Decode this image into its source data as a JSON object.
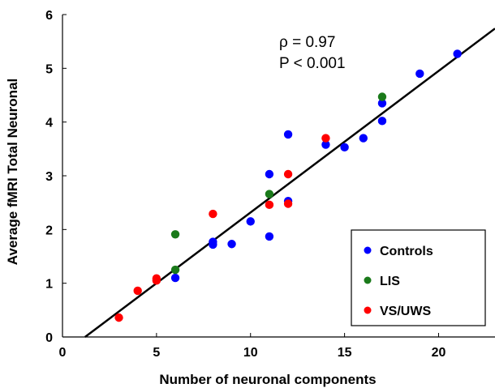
{
  "chart_data": {
    "type": "scatter",
    "xlabel": "Number of neuronal components",
    "ylabel": "Average fMRI Total Neuronal",
    "xlim": [
      0,
      23
    ],
    "ylim": [
      0,
      6
    ],
    "xticks": [
      0,
      5,
      10,
      15,
      20
    ],
    "yticks": [
      0,
      1,
      2,
      3,
      4,
      5,
      6
    ],
    "annotations": [
      "ρ = 0.97",
      "P < 0.001"
    ],
    "legend_position": "bottom-right",
    "grid": false,
    "fit_line": {
      "x": [
        1.2,
        23
      ],
      "y": [
        0,
        5.74
      ],
      "color": "#000000"
    },
    "series": [
      {
        "name": "Controls",
        "color": "#0000ff",
        "points": [
          [
            6,
            1.1
          ],
          [
            8,
            1.72
          ],
          [
            8,
            1.77
          ],
          [
            9,
            1.73
          ],
          [
            10,
            2.15
          ],
          [
            11,
            1.87
          ],
          [
            11,
            3.03
          ],
          [
            12,
            2.53
          ],
          [
            12,
            3.77
          ],
          [
            14,
            3.58
          ],
          [
            15,
            3.53
          ],
          [
            16,
            3.7
          ],
          [
            17,
            4.02
          ],
          [
            17,
            4.35
          ],
          [
            19,
            4.9
          ],
          [
            21,
            5.27
          ]
        ]
      },
      {
        "name": "LIS",
        "color": "#1a7a1a",
        "points": [
          [
            6,
            1.25
          ],
          [
            6,
            1.91
          ],
          [
            11,
            2.66
          ],
          [
            17,
            4.47
          ]
        ]
      },
      {
        "name": "VS/UWS",
        "color": "#ff0000",
        "points": [
          [
            3,
            0.36
          ],
          [
            4,
            0.86
          ],
          [
            5,
            1.05
          ],
          [
            5,
            1.09
          ],
          [
            8,
            2.29
          ],
          [
            11,
            2.46
          ],
          [
            12,
            2.48
          ],
          [
            12,
            3.03
          ],
          [
            14,
            3.7
          ]
        ]
      }
    ]
  }
}
